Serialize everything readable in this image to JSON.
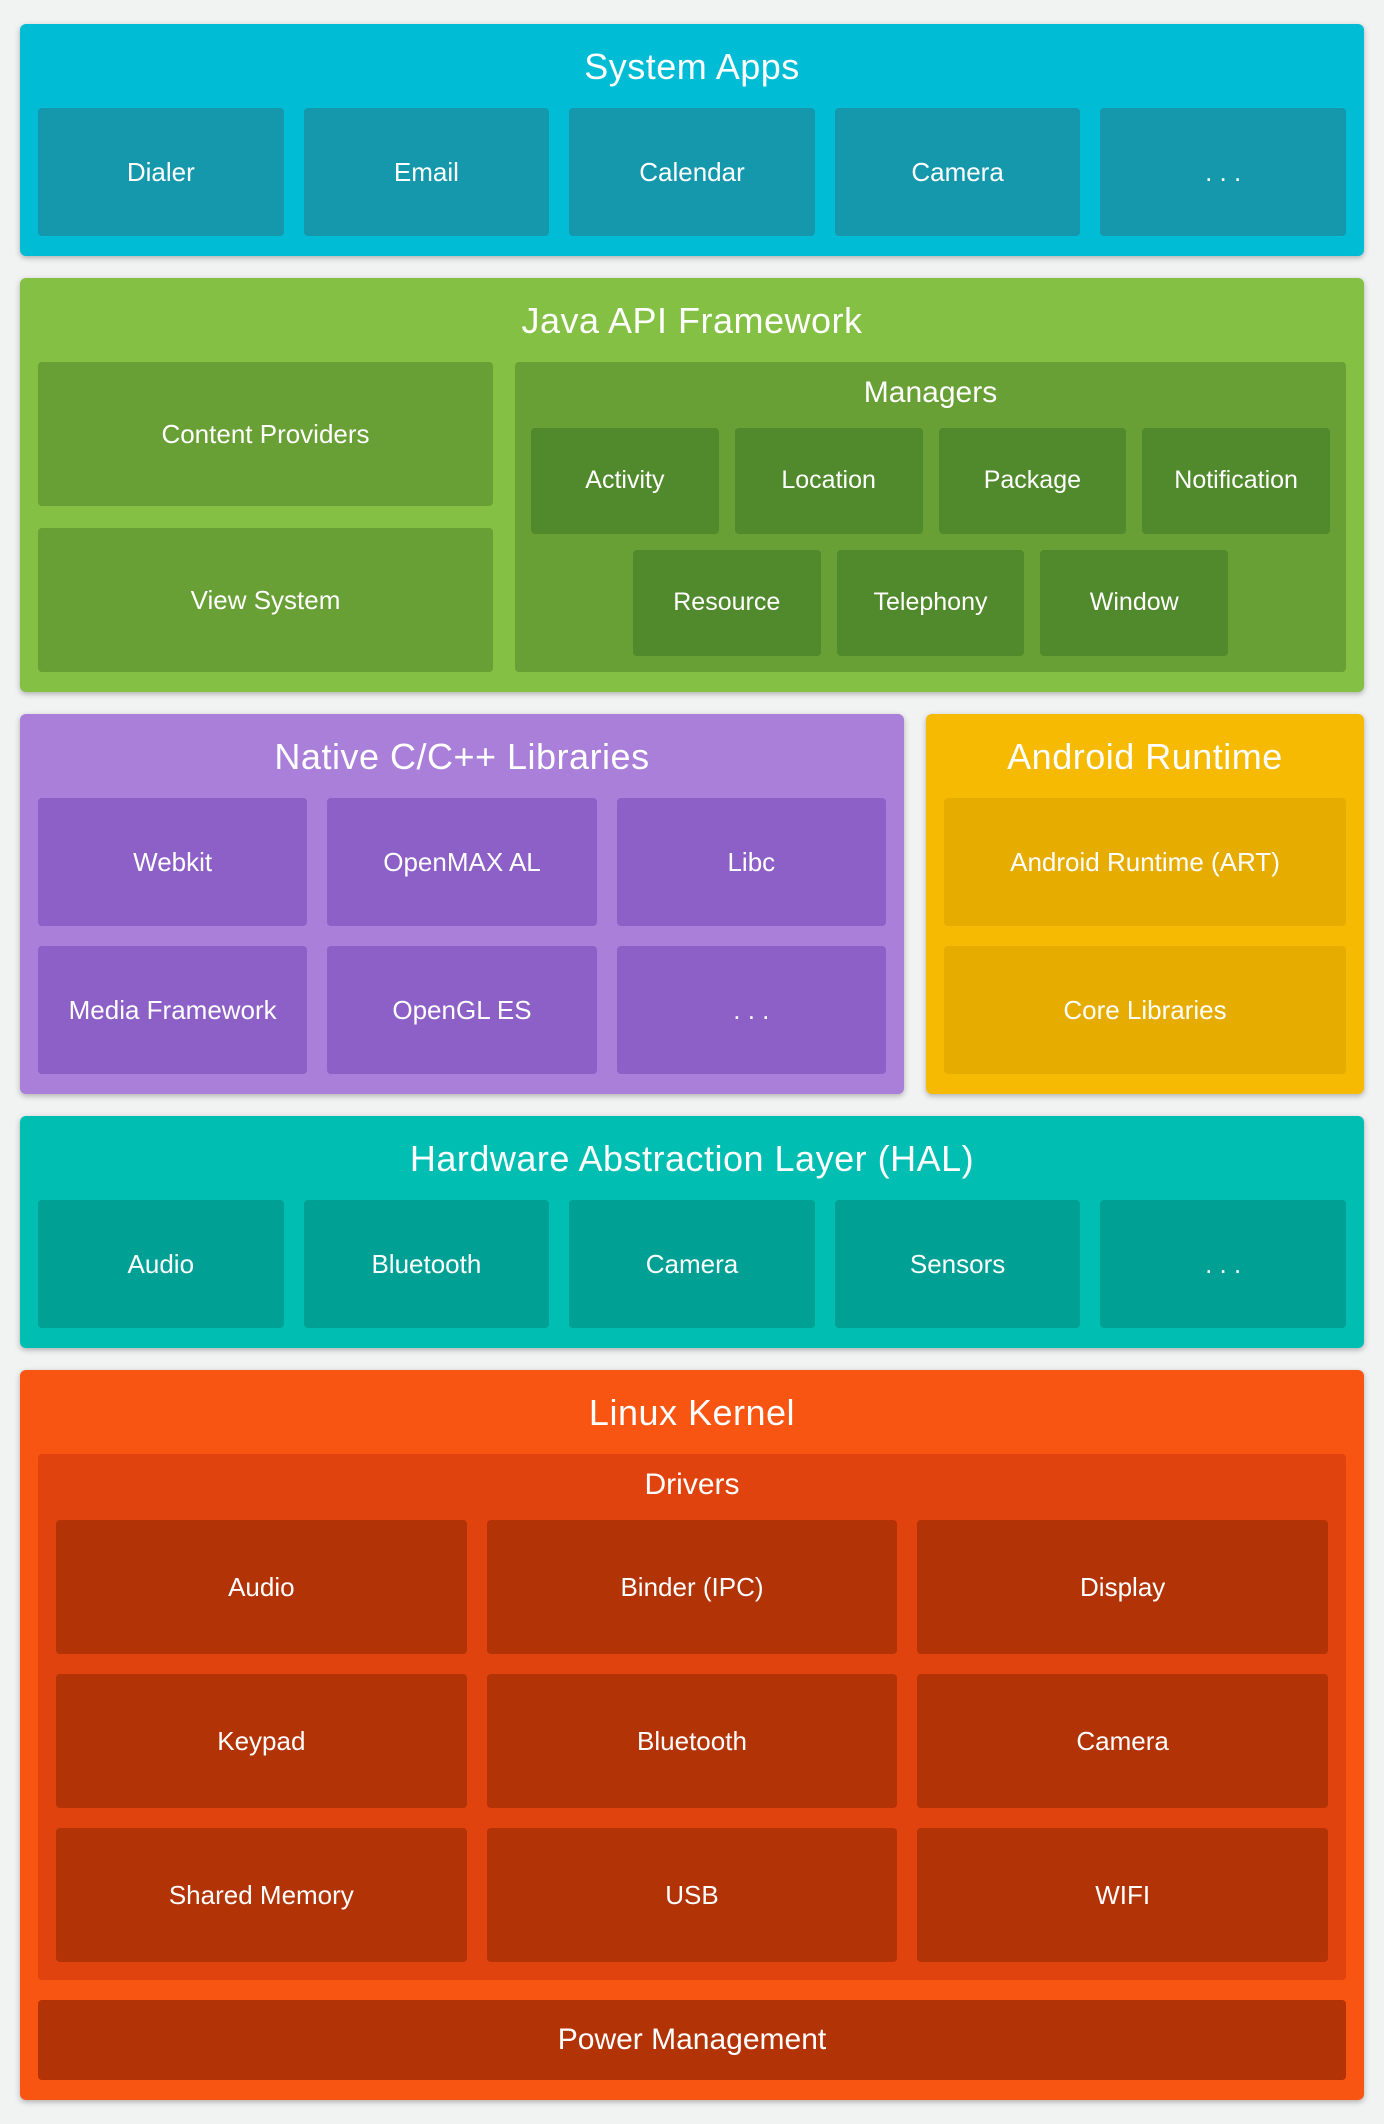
{
  "colors": {
    "bg": "#f1f2f2",
    "sysapps_outer": "#00BCD4",
    "sysapps_inner": "#1598AB",
    "java_outer": "#83C044",
    "java_inner": "#68A036",
    "java_deep": "#518A2C",
    "native_outer": "#A97FD9",
    "native_inner": "#8C60C6",
    "art_outer": "#F7BA03",
    "art_inner": "#E6AC00",
    "hal_outer": "#00BFB2",
    "hal_inner": "#00A095",
    "kernel_outer": "#F85412",
    "kernel_drivers": "#E0430E",
    "kernel_deep": "#B23306"
  },
  "sections": {
    "system_apps": {
      "title": "System Apps",
      "items": [
        "Dialer",
        "Email",
        "Calendar",
        "Camera",
        ". . ."
      ]
    },
    "java_api": {
      "title": "Java API Framework",
      "left_items": [
        "Content Providers",
        "View System"
      ],
      "managers": {
        "title": "Managers",
        "row1": [
          "Activity",
          "Location",
          "Package",
          "Notification"
        ],
        "row2": [
          "Resource",
          "Telephony",
          "Window"
        ]
      }
    },
    "native_libs": {
      "title": "Native C/C++ Libraries",
      "items": [
        "Webkit",
        "OpenMAX AL",
        "Libc",
        "Media Framework",
        "OpenGL ES",
        ". . ."
      ]
    },
    "android_runtime": {
      "title": "Android Runtime",
      "items": [
        "Android Runtime (ART)",
        "Core Libraries"
      ]
    },
    "hal": {
      "title": "Hardware Abstraction Layer (HAL)",
      "items": [
        "Audio",
        "Bluetooth",
        "Camera",
        "Sensors",
        ". . ."
      ]
    },
    "linux_kernel": {
      "title": "Linux Kernel",
      "drivers": {
        "title": "Drivers",
        "items": [
          "Audio",
          "Binder (IPC)",
          "Display",
          "Keypad",
          "Bluetooth",
          "Camera",
          "Shared Memory",
          "USB",
          "WIFI"
        ]
      },
      "power": "Power Management"
    }
  }
}
